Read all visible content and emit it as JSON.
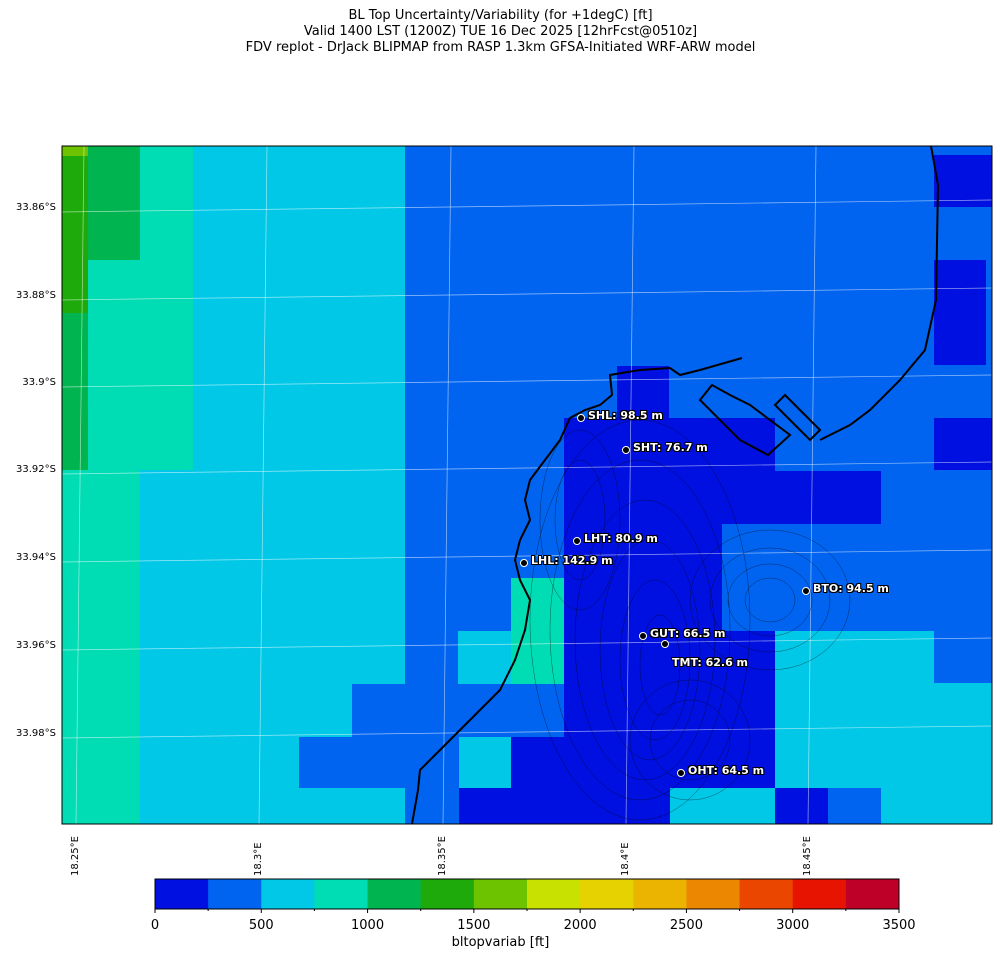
{
  "titles": {
    "line1": "BL Top Uncertainty/Variability (for +1degC) [ft]",
    "line2": "Valid 1400 LST (1200Z) TUE 16 Dec 2025 [12hrFcst@0510z]",
    "line3": "FDV replot - DrJack BLIPMAP from RASP 1.3km GFSA-Initiated WRF-ARW model"
  },
  "axes": {
    "lat_labels": [
      "33.86°S",
      "33.88°S",
      "33.9°S",
      "33.92°S",
      "33.94°S",
      "33.96°S",
      "33.98°S"
    ],
    "lon_labels": [
      "18.25°E",
      "18.3°E",
      "18.35°E",
      "18.4°E",
      "18.45°E"
    ]
  },
  "colorbar": {
    "label": "bltopvariab [ft]",
    "ticks": [
      "0",
      "500",
      "1000",
      "1500",
      "2000",
      "2500",
      "3000",
      "3500"
    ],
    "colors": [
      "#0010e0",
      "#0064f0",
      "#00c8e6",
      "#00dcb4",
      "#00b450",
      "#1eaa0a",
      "#6ec300",
      "#c8e100",
      "#e6d200",
      "#ebb400",
      "#eb8700",
      "#eb4600",
      "#e61400",
      "#be0028"
    ]
  },
  "sites": [
    {
      "label": "SHL: 98.5 m"
    },
    {
      "label": "SHT: 76.7 m"
    },
    {
      "label": "LHT: 80.9 m"
    },
    {
      "label": "LHL: 142.9 m"
    },
    {
      "label": "BTO: 94.5 m"
    },
    {
      "label": "GUT: 66.5 m"
    },
    {
      "label": "TMT: 62.6 m"
    },
    {
      "label": "OHT: 64.5 m"
    }
  ],
  "map_data": {
    "value_grid_note": "",
    "rows_lat_start": "",
    "grid": [
      "G6DDDDBBBBBBBBBBBBBBBBBB",
      "GDDDDBBBBBBBBBBBBBBBBBBA",
      "GDDDDBBBBBBBBBBBBBBBBBBB",
      "GDDDDBBBBBBBBBBBBBBBBBBA",
      "GDDDDBBBBBBBBBBBBBBBBBBA",
      "GDDDDBBBBBBBBBBBBBBBBBBA",
      "DDDCCBBBBBBBBBBBBBBBBBAB",
      "DDDCCBBBBBBBBBBBBBBBBBBB"
    ]
  }
}
